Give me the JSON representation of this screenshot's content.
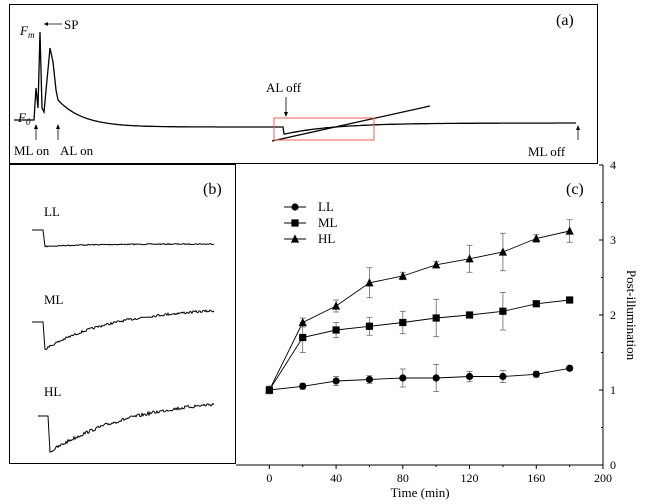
{
  "panel_a": {
    "label": "(a)",
    "fm_label": "F",
    "fm_sub": "m",
    "f0_label": "F",
    "f0_sub": "0",
    "sp_label": "SP",
    "ml_on_label": "ML on",
    "al_on_label": "AL on",
    "al_off_label": "AL off",
    "ml_off_label": "ML off",
    "box_color": "#e8625a"
  },
  "panel_b": {
    "label": "(b)",
    "traces": [
      {
        "label": "LL",
        "depth": 0.55
      },
      {
        "label": "ML",
        "depth": 0.85
      },
      {
        "label": "HL",
        "depth": 1.0
      }
    ]
  },
  "chart_data": {
    "type": "line",
    "panel_label": "(c)",
    "title": "",
    "xlabel": "Time  (min)",
    "ylabel": "Post-illumination",
    "xlim": [
      -20,
      200
    ],
    "ylim": [
      0,
      4
    ],
    "xticks": [
      0,
      40,
      80,
      120,
      160,
      200
    ],
    "yticks": [
      0,
      1,
      2,
      3,
      4
    ],
    "legend_position": "top-left",
    "x": [
      0,
      20,
      40,
      60,
      80,
      100,
      120,
      140,
      160,
      180
    ],
    "series": [
      {
        "name": "LL",
        "marker": "circle",
        "values": [
          1.0,
          1.05,
          1.12,
          1.14,
          1.16,
          1.16,
          1.18,
          1.18,
          1.21,
          1.29
        ],
        "errors": [
          0.05,
          0.04,
          0.06,
          0.05,
          0.12,
          0.18,
          0.07,
          0.08,
          0.04,
          0.03
        ]
      },
      {
        "name": "ML",
        "marker": "square",
        "values": [
          1.0,
          1.7,
          1.8,
          1.85,
          1.9,
          1.96,
          2.0,
          2.05,
          2.15,
          2.2
        ],
        "errors": [
          0.05,
          0.2,
          0.1,
          0.12,
          0.15,
          0.25,
          0.03,
          0.25,
          0.02,
          0.03
        ]
      },
      {
        "name": "HL",
        "marker": "triangle",
        "values": [
          1.0,
          1.9,
          2.12,
          2.43,
          2.52,
          2.67,
          2.75,
          2.84,
          3.02,
          3.12
        ],
        "errors": [
          0.05,
          0.06,
          0.08,
          0.2,
          0.05,
          0.04,
          0.18,
          0.25,
          0.05,
          0.15
        ]
      }
    ]
  }
}
